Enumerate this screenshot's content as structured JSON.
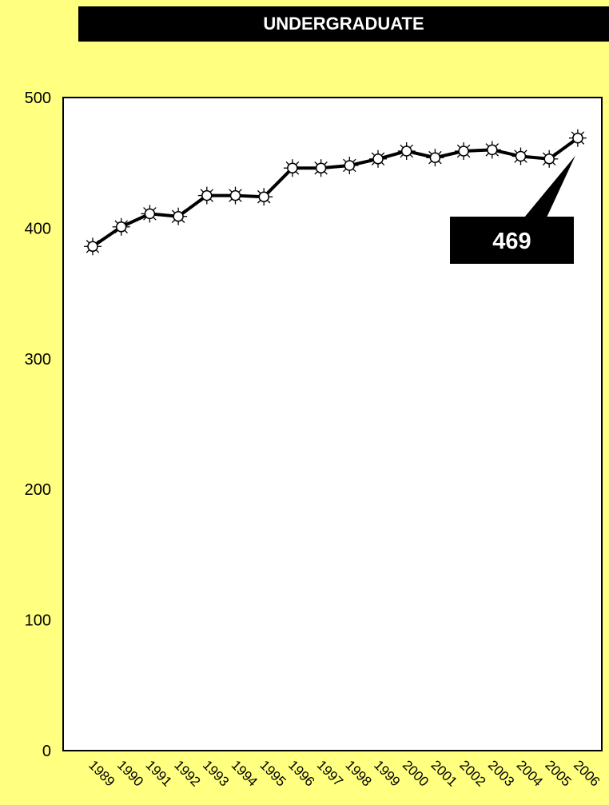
{
  "chart_data": {
    "type": "line",
    "title": "UNDERGRADUATE",
    "xlabel": "",
    "ylabel": "",
    "x": [
      "1989",
      "1990",
      "1991",
      "1992",
      "1993",
      "1994",
      "1995",
      "1996",
      "1997",
      "1998",
      "1999",
      "2000",
      "2001",
      "2002",
      "2003",
      "2004",
      "2005",
      "2006"
    ],
    "values": [
      386,
      401,
      411,
      409,
      425,
      425,
      424,
      446,
      446,
      448,
      453,
      459,
      454,
      459,
      460,
      455,
      453,
      469
    ],
    "ylim": [
      0,
      500
    ],
    "yticks": [
      "0",
      "100",
      "200",
      "300",
      "400",
      "500"
    ],
    "grid": false,
    "legend": "none",
    "callout": {
      "label": "469",
      "point_index": 17
    },
    "colors": {
      "background": "#FFFF80",
      "plot_area": "#FFFFFF",
      "line": "#000000",
      "title_bar": "#000000",
      "title_text": "#FFFFFF",
      "callout_box": "#000000",
      "callout_text": "#FFFFFF"
    },
    "marker": "sun-marker-icon"
  }
}
